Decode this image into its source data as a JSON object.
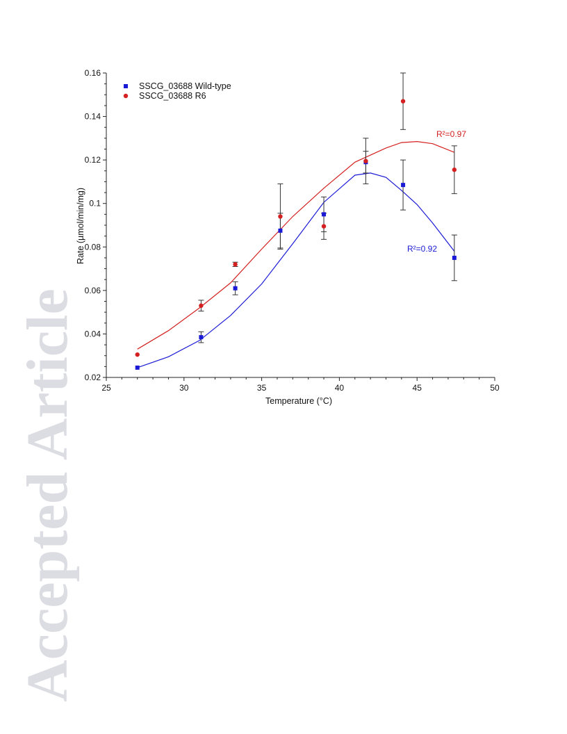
{
  "watermark": "Accepted Article",
  "chart_data": {
    "type": "scatter",
    "xlabel": "Temperature (°C)",
    "ylabel": "Rate (µmol/min/mg)",
    "xlim": [
      25,
      50
    ],
    "ylim": [
      0.02,
      0.16
    ],
    "xticks": [
      25,
      30,
      35,
      40,
      45,
      50
    ],
    "yticks": [
      0.02,
      0.04,
      0.06,
      0.08,
      0.1,
      0.12,
      0.14,
      0.16
    ],
    "ytick_labels": [
      "0.02",
      "0.04",
      "0.06",
      "0.08",
      "0.1",
      "0.12",
      "0.14",
      "0.16"
    ],
    "grid": false,
    "legend_position": "top-left",
    "series": [
      {
        "name": "SSCG_03688 Wild-type",
        "color": "#1a1ad6",
        "marker": "square",
        "x": [
          27.0,
          31.1,
          33.3,
          36.2,
          39.0,
          41.7,
          44.1,
          47.4
        ],
        "y": [
          0.0245,
          0.0385,
          0.061,
          0.0875,
          0.095,
          0.119,
          0.1085,
          0.075
        ],
        "err": [
          0.0,
          0.0025,
          0.003,
          0.008,
          0.008,
          0.005,
          0.0115,
          0.0105
        ],
        "fit": {
          "x": [
            27.0,
            29.0,
            31.0,
            33.0,
            35.0,
            37.0,
            39.0,
            41.0,
            42.0,
            43.0,
            44.0,
            45.0,
            46.0,
            47.4
          ],
          "y": [
            0.0245,
            0.0295,
            0.037,
            0.0485,
            0.063,
            0.0815,
            0.1005,
            0.113,
            0.114,
            0.112,
            0.106,
            0.0995,
            0.091,
            0.078
          ]
        },
        "r2_label": "R²=0.92"
      },
      {
        "name": "SSCG_03688 R6",
        "color": "#d42020",
        "marker": "circle",
        "x": [
          27.0,
          31.1,
          33.3,
          36.2,
          39.0,
          41.7,
          44.1,
          47.4
        ],
        "y": [
          0.0305,
          0.053,
          0.072,
          0.094,
          0.0895,
          0.1195,
          0.147,
          0.1155
        ],
        "err": [
          0.0,
          0.0025,
          0.001,
          0.015,
          0.006,
          0.0105,
          0.013,
          0.011
        ],
        "fit": {
          "x": [
            27.0,
            29.0,
            31.0,
            33.0,
            35.0,
            37.0,
            39.0,
            41.0,
            43.0,
            44.0,
            45.0,
            46.0,
            47.4
          ],
          "y": [
            0.033,
            0.0415,
            0.052,
            0.0635,
            0.079,
            0.094,
            0.107,
            0.119,
            0.1255,
            0.128,
            0.1285,
            0.1275,
            0.1235
          ]
        },
        "r2_label": "R²=0.97"
      }
    ]
  }
}
